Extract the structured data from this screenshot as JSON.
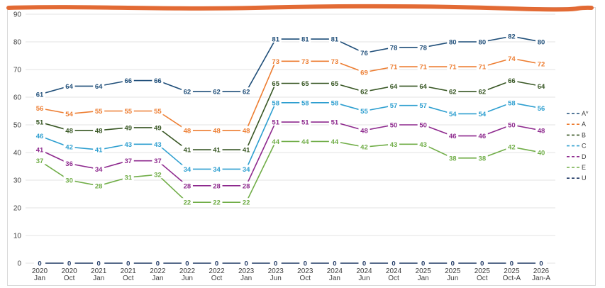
{
  "chart_data": {
    "type": "line",
    "title": "",
    "xlabel": "",
    "ylabel": "",
    "ylim": [
      0,
      90
    ],
    "yticks": [
      0,
      10,
      20,
      30,
      40,
      50,
      60,
      70,
      80,
      90
    ],
    "grid": true,
    "legend_position": "right",
    "categories": [
      {
        "year": "2020",
        "period": "Jan"
      },
      {
        "year": "2020",
        "period": "Oct"
      },
      {
        "year": "2021",
        "period": "Jan"
      },
      {
        "year": "2021",
        "period": "Oct"
      },
      {
        "year": "2022",
        "period": "Jan"
      },
      {
        "year": "2022",
        "period": "Jun"
      },
      {
        "year": "2022",
        "period": "Oct"
      },
      {
        "year": "2023",
        "period": "Jan"
      },
      {
        "year": "2023",
        "period": "Jun"
      },
      {
        "year": "2023",
        "period": "Oct"
      },
      {
        "year": "2024",
        "period": "Jan"
      },
      {
        "year": "2024",
        "period": "Jun"
      },
      {
        "year": "2024",
        "period": "Oct"
      },
      {
        "year": "2025",
        "period": "Jan"
      },
      {
        "year": "2025",
        "period": "Jun"
      },
      {
        "year": "2025",
        "period": "Oct"
      },
      {
        "year": "2025",
        "period": "Oct-A"
      },
      {
        "year": "2026",
        "period": "Jan-A"
      }
    ],
    "series": [
      {
        "name": "A*",
        "color": "#1f4e79",
        "values": [
          61,
          64,
          64,
          66,
          66,
          62,
          62,
          62,
          81,
          81,
          81,
          76,
          78,
          78,
          80,
          80,
          82,
          80
        ]
      },
      {
        "name": "A",
        "color": "#ed7d31",
        "values": [
          56,
          54,
          55,
          55,
          55,
          48,
          48,
          48,
          73,
          73,
          73,
          69,
          71,
          71,
          71,
          71,
          74,
          72
        ]
      },
      {
        "name": "B",
        "color": "#375623",
        "values": [
          51,
          48,
          48,
          49,
          49,
          41,
          41,
          41,
          65,
          65,
          65,
          62,
          64,
          64,
          62,
          62,
          66,
          64
        ]
      },
      {
        "name": "C",
        "color": "#2e9fd0",
        "values": [
          46,
          42,
          41,
          43,
          43,
          34,
          34,
          34,
          58,
          58,
          58,
          55,
          57,
          57,
          54,
          54,
          58,
          56
        ]
      },
      {
        "name": "D",
        "color": "#8e2a8e",
        "values": [
          41,
          36,
          34,
          37,
          37,
          28,
          28,
          28,
          51,
          51,
          51,
          48,
          50,
          50,
          46,
          46,
          50,
          48
        ]
      },
      {
        "name": "E",
        "color": "#70ad47",
        "values": [
          37,
          30,
          28,
          31,
          32,
          22,
          22,
          22,
          44,
          44,
          44,
          42,
          43,
          43,
          38,
          38,
          42,
          40
        ]
      },
      {
        "name": "U",
        "color": "#1f3864",
        "values": [
          0,
          0,
          0,
          0,
          0,
          0,
          0,
          0,
          0,
          0,
          0,
          0,
          0,
          0,
          0,
          0,
          0,
          0
        ]
      }
    ]
  }
}
